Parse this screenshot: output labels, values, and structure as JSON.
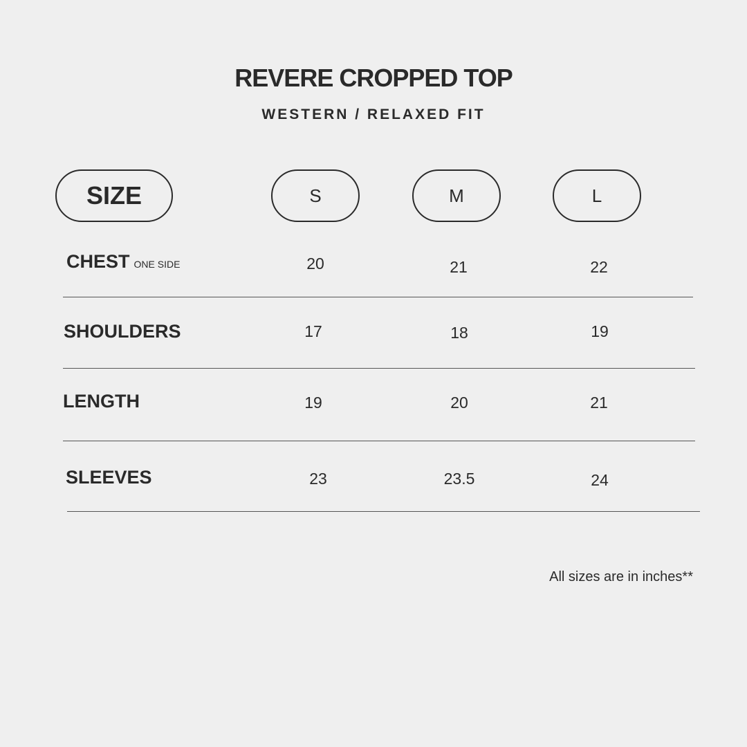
{
  "title": "REVERE CROPPED TOP",
  "subtitle": "WESTERN / RELAXED FIT",
  "header": {
    "size_label": "SIZE",
    "sizes": [
      "S",
      "M",
      "L"
    ]
  },
  "rows": [
    {
      "label": "CHEST",
      "sublabel": "ONE SIDE",
      "values": [
        "20",
        "21",
        "22"
      ]
    },
    {
      "label": "SHOULDERS",
      "values": [
        "17",
        "18",
        "19"
      ]
    },
    {
      "label": "LENGTH",
      "values": [
        "19",
        "20",
        "21"
      ]
    },
    {
      "label": "SLEEVES",
      "values": [
        "23",
        "23.5",
        "24"
      ]
    }
  ],
  "note": "All sizes are in inches**",
  "colors": {
    "background": "#efefef",
    "text": "#2a2a2a"
  }
}
